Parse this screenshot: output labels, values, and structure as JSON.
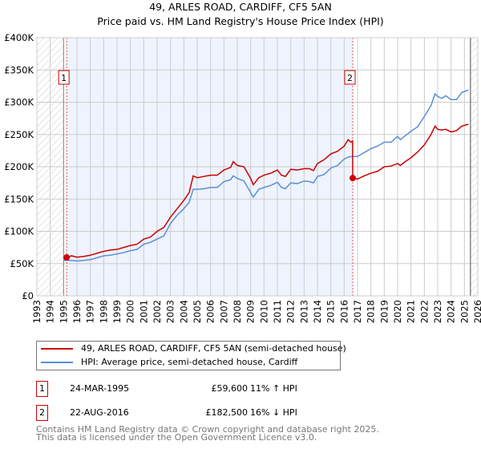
{
  "title": "49, ARLES ROAD, CARDIFF, CF5 5AN",
  "subtitle": "Price paid vs. HM Land Registry's House Price Index (HPI)",
  "chart_data": {
    "type": "line",
    "title": "49, ARLES ROAD, CARDIFF, CF5 5AN",
    "subtitle": "Price paid vs. HM Land Registry's House Price Index (HPI)",
    "xlim": [
      1993,
      2026
    ],
    "ylim": [
      0,
      400000
    ],
    "x_ticks": [
      "1993",
      "1994",
      "1995",
      "1996",
      "1997",
      "1998",
      "1999",
      "2000",
      "2001",
      "2002",
      "2003",
      "2004",
      "2005",
      "2006",
      "2007",
      "2008",
      "2009",
      "2010",
      "2011",
      "2012",
      "2013",
      "2014",
      "2015",
      "2016",
      "2017",
      "2018",
      "2019",
      "2020",
      "2021",
      "2022",
      "2023",
      "2024",
      "2025",
      "2026"
    ],
    "y_ticks": [
      {
        "v": 0,
        "l": "£0"
      },
      {
        "v": 50000,
        "l": "£50K"
      },
      {
        "v": 100000,
        "l": "£100K"
      },
      {
        "v": 150000,
        "l": "£150K"
      },
      {
        "v": 200000,
        "l": "£200K"
      },
      {
        "v": 250000,
        "l": "£250K"
      },
      {
        "v": 300000,
        "l": "£300K"
      },
      {
        "v": 350000,
        "l": "£350K"
      },
      {
        "v": 400000,
        "l": "£400K"
      }
    ],
    "grid": true,
    "data_start": 1995.0,
    "data_end": 2025.45,
    "series": [
      {
        "name": "49, ARLES ROAD, CARDIFF, CF5 5AN (semi-detached house)",
        "color": "#cc0000",
        "x": [
          1995.23,
          1995.6,
          1996,
          1996.5,
          1997,
          1997.5,
          1998,
          1998.5,
          1999,
          1999.5,
          2000,
          2000.5,
          2001,
          2001.5,
          2002,
          2002.5,
          2003,
          2003.5,
          2004,
          2004.4,
          2004.7,
          2005,
          2005.5,
          2006,
          2006.5,
          2007,
          2007.5,
          2007.7,
          2008,
          2008.5,
          2009,
          2009.2,
          2009.6,
          2010,
          2010.5,
          2011,
          2011.3,
          2011.6,
          2012,
          2012.5,
          2013,
          2013.4,
          2013.7,
          2014,
          2014.5,
          2015,
          2015.5,
          2016,
          2016.3,
          2016.5,
          2016.63,
          2016.64,
          2017,
          2017.5,
          2018,
          2018.5,
          2019,
          2019.5,
          2020,
          2020.2,
          2020.5,
          2021,
          2021.5,
          2022,
          2022.5,
          2022.8,
          2023,
          2023.3,
          2023.6,
          2024,
          2024.4,
          2024.8,
          2025.3
        ],
        "y": [
          59600,
          62000,
          60000,
          61000,
          63000,
          66000,
          69000,
          71000,
          72000,
          75000,
          78000,
          80000,
          88000,
          91000,
          100000,
          106000,
          122000,
          135000,
          148000,
          160000,
          186000,
          183000,
          185000,
          187000,
          187000,
          195000,
          199000,
          208000,
          202000,
          200000,
          182000,
          172000,
          183000,
          187000,
          190000,
          195000,
          187000,
          185000,
          196000,
          195000,
          197000,
          197000,
          194000,
          205000,
          211000,
          220000,
          224000,
          232000,
          242000,
          238000,
          240000,
          182500,
          181000,
          186000,
          190000,
          193000,
          200000,
          201000,
          205000,
          202000,
          207000,
          214000,
          223000,
          234000,
          250000,
          263000,
          258000,
          257000,
          258000,
          254000,
          256000,
          263000,
          266000
        ]
      },
      {
        "name": "HPI: Average price, semi-detached house, Cardiff",
        "color": "#5b8fd4",
        "x": [
          1995.0,
          1995.5,
          1996,
          1996.5,
          1997,
          1997.5,
          1998,
          1998.5,
          1999,
          1999.5,
          2000,
          2000.5,
          2001,
          2001.5,
          2002,
          2002.5,
          2003,
          2003.5,
          2004,
          2004.4,
          2004.7,
          2005,
          2005.5,
          2006,
          2006.5,
          2007,
          2007.5,
          2007.7,
          2008,
          2008.5,
          2009,
          2009.2,
          2009.6,
          2010,
          2010.5,
          2011,
          2011.3,
          2011.6,
          2012,
          2012.5,
          2013,
          2013.4,
          2013.7,
          2014,
          2014.5,
          2015,
          2015.5,
          2016,
          2016.3,
          2016.6,
          2017,
          2017.5,
          2018,
          2018.5,
          2019,
          2019.5,
          2020,
          2020.2,
          2020.5,
          2021,
          2021.5,
          2022,
          2022.5,
          2022.8,
          2023,
          2023.3,
          2023.6,
          2024,
          2024.4,
          2024.8,
          2025.3
        ],
        "y": [
          55000,
          55000,
          54000,
          55000,
          56000,
          59000,
          62000,
          63000,
          65000,
          67000,
          70000,
          72000,
          80000,
          83000,
          88000,
          93000,
          112000,
          125000,
          135000,
          145000,
          165000,
          165000,
          166000,
          168000,
          168000,
          177000,
          180000,
          186000,
          182000,
          178000,
          160000,
          153000,
          165000,
          168000,
          171000,
          176000,
          168000,
          166000,
          175000,
          174000,
          178000,
          177000,
          175000,
          185000,
          188000,
          198000,
          202000,
          212000,
          215000,
          216000,
          216000,
          222000,
          228000,
          232000,
          238000,
          238000,
          247000,
          242000,
          247000,
          255000,
          262000,
          278000,
          295000,
          313000,
          309000,
          306000,
          310000,
          304000,
          304000,
          315000,
          319000
        ]
      }
    ],
    "sales": [
      {
        "n": "1",
        "x": 1995.23,
        "y": 59600
      },
      {
        "n": "2",
        "x": 2016.64,
        "y": 182500
      }
    ]
  },
  "legend": {
    "red": "49, ARLES ROAD, CARDIFF, CF5 5AN (semi-detached house)",
    "blue": "HPI: Average price, semi-detached house, Cardiff"
  },
  "transactions": [
    {
      "n": "1",
      "date": "24-MAR-1995",
      "price": "£59,600",
      "hpi": "11% ↑ HPI"
    },
    {
      "n": "2",
      "date": "22-AUG-2016",
      "price": "£182,500",
      "hpi": "16% ↓ HPI"
    }
  ],
  "footer": {
    "line1": "Contains HM Land Registry data © Crown copyright and database right 2025.",
    "line2": "This data is licensed under the Open Government Licence v3.0."
  }
}
